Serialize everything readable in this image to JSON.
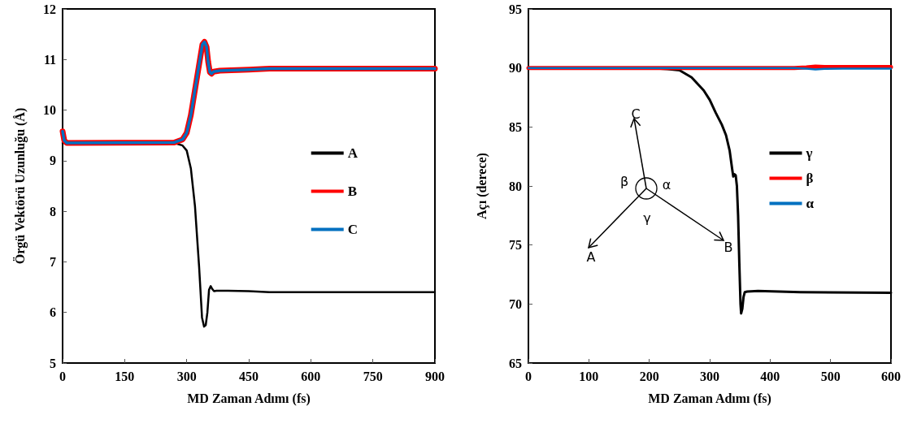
{
  "chart_data": [
    {
      "type": "line",
      "xlabel": "MD Zaman Adımı (fs)",
      "ylabel": "Örgü Vektörü Uzunluğu (Å)",
      "xlim": [
        0,
        900
      ],
      "xticks": [
        0,
        150,
        300,
        450,
        600,
        750,
        900
      ],
      "ylim": [
        5,
        12
      ],
      "yticks": [
        5,
        6,
        7,
        8,
        9,
        10,
        11,
        12
      ],
      "grid": false,
      "legend": "right",
      "marker": "none",
      "line_style": "solid",
      "series": [
        {
          "name": "A",
          "color": "#000000",
          "x": [
            0,
            10,
            270,
            290,
            300,
            310,
            320,
            330,
            337,
            342,
            346,
            350,
            354,
            358,
            362,
            366,
            372,
            400,
            450,
            500,
            600,
            900
          ],
          "values": [
            9.35,
            9.35,
            9.35,
            9.3,
            9.2,
            8.85,
            8.1,
            6.9,
            5.9,
            5.72,
            5.75,
            6.0,
            6.45,
            6.52,
            6.46,
            6.42,
            6.43,
            6.43,
            6.42,
            6.4,
            6.4,
            6.4
          ]
        },
        {
          "name": "B",
          "color": "#ff0000",
          "x": [
            0,
            4,
            10,
            270,
            290,
            300,
            310,
            320,
            330,
            338,
            343,
            348,
            352,
            356,
            360,
            365,
            380,
            450,
            500,
            600,
            900
          ],
          "values": [
            9.58,
            9.4,
            9.35,
            9.36,
            9.42,
            9.55,
            9.9,
            10.4,
            10.9,
            11.3,
            11.35,
            11.25,
            10.95,
            10.75,
            10.72,
            10.76,
            10.78,
            10.8,
            10.82,
            10.82,
            10.82
          ]
        },
        {
          "name": "C",
          "color": "#0070c0",
          "x": [
            0,
            4,
            10,
            270,
            290,
            300,
            310,
            320,
            330,
            338,
            343,
            348,
            352,
            356,
            360,
            365,
            380,
            450,
            500,
            600,
            900
          ],
          "values": [
            9.58,
            9.4,
            9.35,
            9.36,
            9.42,
            9.55,
            9.9,
            10.4,
            10.9,
            11.3,
            11.35,
            11.25,
            10.95,
            10.75,
            10.72,
            10.76,
            10.78,
            10.8,
            10.82,
            10.82,
            10.82
          ]
        }
      ]
    },
    {
      "type": "line",
      "xlabel": "MD Zaman Adımı (fs)",
      "ylabel": "Açı (derece)",
      "xlim": [
        0,
        600
      ],
      "xticks": [
        0,
        100,
        200,
        300,
        400,
        500,
        600
      ],
      "ylim": [
        65,
        95
      ],
      "yticks": [
        65,
        70,
        75,
        80,
        85,
        90,
        95
      ],
      "grid": false,
      "legend": "right",
      "marker": "none",
      "line_style": "solid",
      "annotations": [
        "C",
        "A",
        "B",
        "β",
        "α",
        "γ"
      ],
      "series": [
        {
          "name": "γ",
          "color": "#000000",
          "x": [
            0,
            200,
            230,
            250,
            270,
            290,
            300,
            310,
            320,
            327,
            333,
            337,
            339,
            341,
            343,
            345,
            347,
            349,
            351,
            352,
            354,
            356,
            358,
            362,
            380,
            450,
            600
          ],
          "values": [
            90,
            90,
            89.9,
            89.8,
            89.2,
            88.1,
            87.3,
            86.2,
            85.2,
            84.3,
            83,
            81.5,
            80.8,
            81,
            80.9,
            80,
            77.5,
            73.5,
            70,
            69.2,
            69.6,
            70.6,
            71,
            71.05,
            71.1,
            71.0,
            70.95
          ]
        },
        {
          "name": "β",
          "color": "#ff0000",
          "x": [
            0,
            440,
            460,
            475,
            490,
            520,
            600
          ],
          "values": [
            90,
            90,
            90.05,
            90.12,
            90.08,
            90.08,
            90.08
          ]
        },
        {
          "name": "α",
          "color": "#0070c0",
          "x": [
            0,
            440,
            460,
            475,
            490,
            520,
            600
          ],
          "values": [
            90,
            90,
            89.95,
            89.88,
            89.92,
            89.95,
            89.95
          ]
        }
      ]
    }
  ]
}
